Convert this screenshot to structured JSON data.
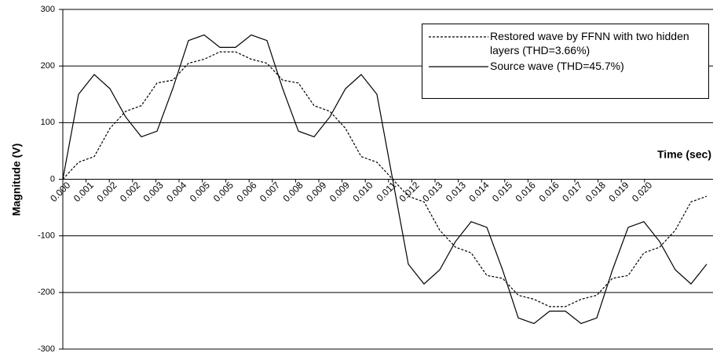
{
  "chart_data": {
    "type": "line",
    "x_label": "Time (sec)",
    "y_label": "Magnitude (V)",
    "xlim": [
      0,
      0.0207
    ],
    "ylim": [
      -300,
      300
    ],
    "yticks": [
      -300,
      -200,
      -100,
      0,
      100,
      200,
      300
    ],
    "xticks": [
      {
        "value": 0,
        "label": "0.000"
      },
      {
        "value": 0.00074,
        "label": "0.001"
      },
      {
        "value": 0.00148,
        "label": "0.002"
      },
      {
        "value": 0.00222,
        "label": "0.002"
      },
      {
        "value": 0.00296,
        "label": "0.003"
      },
      {
        "value": 0.0037,
        "label": "0.004"
      },
      {
        "value": 0.00444,
        "label": "0.005"
      },
      {
        "value": 0.00519,
        "label": "0.005"
      },
      {
        "value": 0.00593,
        "label": "0.006"
      },
      {
        "value": 0.00667,
        "label": "0.007"
      },
      {
        "value": 0.00741,
        "label": "0.008"
      },
      {
        "value": 0.00815,
        "label": "0.009"
      },
      {
        "value": 0.00889,
        "label": "0.009"
      },
      {
        "value": 0.00963,
        "label": "0.010"
      },
      {
        "value": 0.01037,
        "label": "0.011"
      },
      {
        "value": 0.01111,
        "label": "0.012"
      },
      {
        "value": 0.01185,
        "label": "0.013"
      },
      {
        "value": 0.01259,
        "label": "0.013"
      },
      {
        "value": 0.01333,
        "label": "0.014"
      },
      {
        "value": 0.01407,
        "label": "0.015"
      },
      {
        "value": 0.01481,
        "label": "0.016"
      },
      {
        "value": 0.01556,
        "label": "0.016"
      },
      {
        "value": 0.0163,
        "label": "0.017"
      },
      {
        "value": 0.01704,
        "label": "0.018"
      },
      {
        "value": 0.01778,
        "label": "0.019"
      },
      {
        "value": 0.01852,
        "label": "0.020"
      }
    ],
    "grid": true,
    "legend_position": "top-right",
    "x": [
      0,
      0.0005,
      0.001,
      0.0015,
      0.002,
      0.0025,
      0.003,
      0.0035,
      0.004,
      0.0045,
      0.005,
      0.0055,
      0.006,
      0.0065,
      0.007,
      0.0075,
      0.008,
      0.0085,
      0.009,
      0.0095,
      0.01,
      0.0105,
      0.011,
      0.0115,
      0.012,
      0.0125,
      0.013,
      0.0135,
      0.014,
      0.0145,
      0.015,
      0.0155,
      0.016,
      0.0165,
      0.017,
      0.0175,
      0.018,
      0.0185,
      0.019,
      0.0195,
      0.02,
      0.0205
    ],
    "series": [
      {
        "name": "Restored wave by FFNN with two hidden layers (THD=3.66%)",
        "color": "#000000",
        "line_style": "dashed",
        "values": [
          0,
          30,
          40,
          90,
          120,
          130,
          170,
          175,
          205,
          212,
          225,
          225,
          212,
          205,
          175,
          170,
          130,
          120,
          90,
          40,
          30,
          0,
          -30,
          -40,
          -90,
          -120,
          -130,
          -170,
          -175,
          -205,
          -212,
          -225,
          -225,
          -212,
          -205,
          -175,
          -170,
          -130,
          -120,
          -90,
          -40,
          -30
        ]
      },
      {
        "name": "Source wave (THD=45.7%)",
        "color": "#000000",
        "line_style": "solid",
        "values": [
          0,
          150,
          185,
          160,
          110,
          75,
          85,
          160,
          245,
          255,
          233,
          233,
          255,
          245,
          160,
          85,
          75,
          110,
          160,
          185,
          150,
          0,
          -150,
          -185,
          -160,
          -110,
          -75,
          -85,
          -160,
          -245,
          -255,
          -233,
          -233,
          -255,
          -245,
          -160,
          -85,
          -75,
          -110,
          -160,
          -185,
          -150
        ]
      }
    ]
  }
}
